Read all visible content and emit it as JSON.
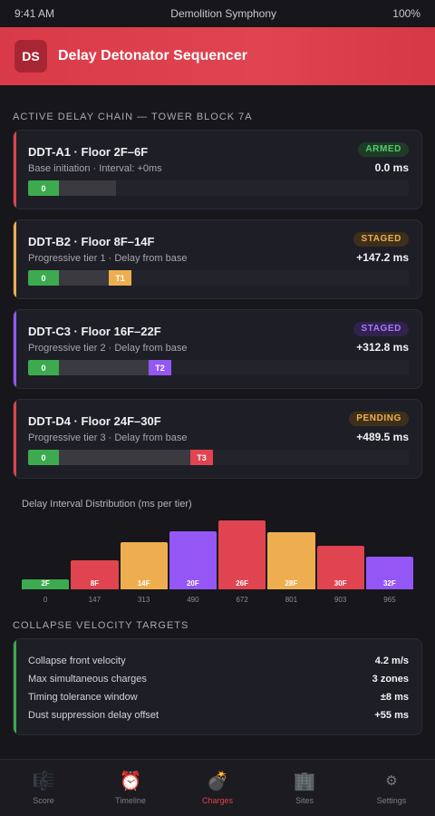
{
  "status": {
    "time": "9:41 AM",
    "carrier": "Demolition Symphony",
    "battery": "100%"
  },
  "header": {
    "logo": "DS",
    "title": "Delay Detonator Sequencer"
  },
  "chain": {
    "title": "ACTIVE DELAY CHAIN — TOWER BLOCK 7A",
    "cards": [
      {
        "name": "DDT-A1 · Floor 2F–6F",
        "badge": "ARMED",
        "sub": "Base initiation · Interval: +0ms",
        "delay": "0.0 ms",
        "start_label": "0",
        "end_label": "",
        "accent": "#e04450",
        "badge_color": "#4fcf6a",
        "badge_bg": "#1f3a26",
        "end_color": "",
        "progress": 0.0
      },
      {
        "name": "DDT-B2 · Floor 8F–14F",
        "badge": "STAGED",
        "sub": "Progressive tier 1 · Delay from base",
        "delay": "+147.2 ms",
        "start_label": "0",
        "end_label": "T1",
        "accent": "#eeae4f",
        "badge_color": "#eeae4f",
        "badge_bg": "#3d2f1a",
        "end_color": "#eeae4f",
        "progress": 0.3
      },
      {
        "name": "DDT-C3 · Floor 16F–22F",
        "badge": "STAGED",
        "sub": "Progressive tier 2 · Delay from base",
        "delay": "+312.8 ms",
        "start_label": "0",
        "end_label": "T2",
        "accent": "#9457f5",
        "badge_color": "#a877ff",
        "badge_bg": "#30224d",
        "end_color": "#9457f5",
        "progress": 0.64
      },
      {
        "name": "DDT-D4 · Floor 24F–30F",
        "badge": "PENDING",
        "sub": "Progressive tier 3 · Delay from base",
        "delay": "+489.5 ms",
        "start_label": "0",
        "end_label": "T3",
        "accent": "#e04450",
        "badge_color": "#eeae4f",
        "badge_bg": "#3d2f1a",
        "end_color": "#e04450",
        "progress": 1.0
      }
    ]
  },
  "chart_data": {
    "type": "bar",
    "title": "Delay Interval Distribution (ms per tier)",
    "categories": [
      "2F",
      "8F",
      "14F",
      "20F",
      "26F",
      "28F",
      "30F",
      "32F"
    ],
    "x_ticks": [
      "0",
      "147",
      "313",
      "490",
      "672",
      "801",
      "903",
      "965"
    ],
    "values": [
      8,
      24,
      39,
      48,
      57,
      47,
      36,
      27
    ],
    "colors": [
      "#3daa4f",
      "#e04450",
      "#eeae4f",
      "#9457f5",
      "#e04450",
      "#eeae4f",
      "#e04450",
      "#9457f5"
    ],
    "ylim": [
      0,
      60
    ]
  },
  "velocity": {
    "title": "COLLAPSE VELOCITY TARGETS",
    "rows": [
      {
        "label": "Collapse front velocity",
        "value": "4.2 m/s"
      },
      {
        "label": "Max simultaneous charges",
        "value": "3 zones"
      },
      {
        "label": "Timing tolerance window",
        "value": "±8 ms"
      },
      {
        "label": "Dust suppression delay offset",
        "value": "+55 ms"
      }
    ]
  },
  "nav": {
    "items": [
      {
        "label": "Score",
        "icon": "score-icon",
        "glyph": "🎼"
      },
      {
        "label": "Timeline",
        "icon": "alarm-clock-icon",
        "glyph": "⏰"
      },
      {
        "label": "Charges",
        "icon": "bomb-icon",
        "glyph": "💣"
      },
      {
        "label": "Sites",
        "icon": "building-icon",
        "glyph": "🏢"
      },
      {
        "label": "Settings",
        "icon": "gear-icon",
        "glyph": "⚙"
      }
    ],
    "active": "Charges"
  }
}
